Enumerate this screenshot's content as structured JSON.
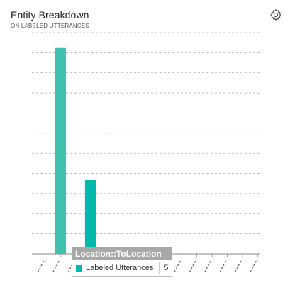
{
  "card": {
    "title": "Entity Breakdown",
    "subtitle": "ON LABELED UTTERANCES"
  },
  "icons": {
    "settings": "gear-icon"
  },
  "colors": {
    "bar": "#3fc1ad",
    "bar_highlight": "#01b8aa",
    "grid": "#aaaaaa"
  },
  "tooltip": {
    "header": "Location::ToLocation",
    "series_label": "Labeled Utterances",
    "value": "5"
  },
  "chart_data": {
    "type": "bar",
    "title": "Entity Breakdown",
    "subtitle": "ON LABELED UTTERANCES",
    "categories": [
      "c1",
      "c2",
      "c3",
      "c4",
      "c5",
      "c6",
      "c7",
      "c8",
      "c9",
      "c10",
      "c11",
      "c12",
      "c13",
      "c14",
      "c15"
    ],
    "series": [
      {
        "name": "Labeled Utterances",
        "values": [
          0,
          14,
          0,
          5,
          0,
          0,
          0,
          0,
          0,
          0,
          0,
          0,
          0,
          0,
          0
        ]
      }
    ],
    "highlight_index": 3,
    "ylim": [
      0,
      15
    ],
    "grid": true,
    "gridlines": 11
  }
}
